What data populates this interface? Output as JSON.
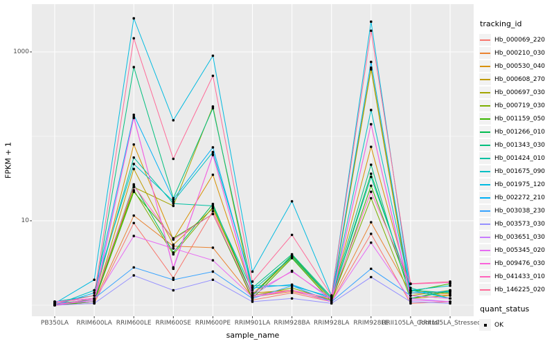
{
  "figure": {
    "background": "#FFFFFF",
    "panel_background": "#EBEBEB",
    "gridline_color": "#FFFFFF",
    "tick_label_color": "#4D4D4D",
    "point_color": "#000000"
  },
  "axes": {
    "x_title": "sample_name",
    "y_title": "FPKM + 1"
  },
  "legend": {
    "tracking_title": "tracking_id",
    "quant_title": "quant_status",
    "quant_item_label": "OK"
  },
  "chart_data": {
    "type": "line",
    "title": "",
    "xlabel": "sample_name",
    "ylabel": "FPKM + 1",
    "legend_position": "right",
    "grid": true,
    "point_marker": "black dot on every value (quant_status = OK)",
    "y_axis": {
      "scale": "log10",
      "tick_values": [
        1000,
        10
      ],
      "tick_labels": [
        "1000",
        "10"
      ],
      "minor_gridline_values": [
        100,
        1
      ],
      "range_approx": [
        0.75,
        3700
      ]
    },
    "categories": [
      "PB350LA",
      "RRIM600LA",
      "RRIM600LE",
      "RRIM600SE",
      "RRIM600PE",
      "RRIM901LA",
      "RRIM928BA",
      "RRIM928LA",
      "RRIM928LE",
      "RRII105LA_Control",
      "RRII105LA_Stressed"
    ],
    "series": [
      {
        "name": "Hb_000069_220",
        "color": "#F8766D",
        "values": [
          1.0,
          1.05,
          9.4,
          2.1,
          13,
          1.15,
          1.4,
          1.1,
          7,
          1.05,
          1.1
        ]
      },
      {
        "name": "Hb_000210_030",
        "color": "#EA8331",
        "values": [
          1.02,
          1.1,
          11.5,
          5,
          4.8,
          1.25,
          1.45,
          1.15,
          9.6,
          1.4,
          1.3
        ]
      },
      {
        "name": "Hb_000530_040",
        "color": "#D89000",
        "values": [
          1.0,
          1.15,
          80,
          6,
          35,
          1.4,
          1.5,
          1.2,
          75,
          1.5,
          1.35
        ]
      },
      {
        "name": "Hb_000608_270",
        "color": "#C09B00",
        "values": [
          1.05,
          1.1,
          41,
          5.2,
          14,
          1.3,
          3.7,
          1.15,
          620,
          1.2,
          1.3
        ]
      },
      {
        "name": "Hb_000697_030",
        "color": "#A3A500",
        "values": [
          1.0,
          1.1,
          25,
          15,
          225,
          1.35,
          3.8,
          1.2,
          650,
          1.3,
          1.5
        ]
      },
      {
        "name": "Hb_000719_030",
        "color": "#7CAE00",
        "values": [
          1.1,
          1.2,
          23,
          4,
          14.5,
          1.3,
          1.6,
          1.15,
          18.5,
          1.2,
          1.45
        ]
      },
      {
        "name": "Hb_001159_050",
        "color": "#39B600",
        "values": [
          1.0,
          1.1,
          22,
          6.2,
          12,
          1.2,
          3.6,
          1.1,
          26,
          1.45,
          1.8
        ]
      },
      {
        "name": "Hb_001266_010",
        "color": "#00BB4E",
        "values": [
          1.05,
          1.15,
          27,
          4.2,
          15.8,
          1.3,
          3.9,
          1.2,
          36,
          1.5,
          1.4
        ]
      },
      {
        "name": "Hb_001343_030",
        "color": "#00BF7D",
        "values": [
          1.0,
          1.2,
          660,
          18.5,
          215,
          1.6,
          4,
          1.25,
          46,
          1.2,
          1.5
        ]
      },
      {
        "name": "Hb_001424_010",
        "color": "#00C1A3",
        "values": [
          1.1,
          1.3,
          56,
          16,
          15,
          1.5,
          3.7,
          1.2,
          33,
          1.6,
          1.2
        ]
      },
      {
        "name": "Hb_001675_090",
        "color": "#00BFC4",
        "values": [
          1.0,
          1.5,
          47,
          17,
          65,
          1.7,
          1.7,
          1.25,
          205,
          1.5,
          1.7
        ]
      },
      {
        "name": "Hb_001975_120",
        "color": "#00BAE0",
        "values": [
          1.05,
          2.0,
          2500,
          155,
          900,
          2.5,
          17,
          1.3,
          2280,
          1.5,
          1.2
        ]
      },
      {
        "name": "Hb_002272_210",
        "color": "#00B0F6",
        "values": [
          1.0,
          1.4,
          180,
          18,
          74,
          1.6,
          1.75,
          1.2,
          760,
          1.4,
          1.45
        ]
      },
      {
        "name": "Hb_003038_230",
        "color": "#35A2FF",
        "values": [
          1.1,
          1.2,
          2.8,
          2,
          2.5,
          1.2,
          1.7,
          1.1,
          2.7,
          1.3,
          1.2
        ]
      },
      {
        "name": "Hb_003573_030",
        "color": "#9590FF",
        "values": [
          1.0,
          1.05,
          2.25,
          1.5,
          2,
          1.1,
          1.2,
          1.05,
          2.15,
          1.1,
          1.05
        ]
      },
      {
        "name": "Hb_003651_030",
        "color": "#C77CFF",
        "values": [
          1.05,
          1.1,
          170,
          2.7,
          61,
          1.3,
          2.55,
          1.15,
          139,
          1.2,
          1.1
        ]
      },
      {
        "name": "Hb_005345_020",
        "color": "#E76BF3",
        "values": [
          1.0,
          1.15,
          6.6,
          4.7,
          3.4,
          1.25,
          1.5,
          1.1,
          5.5,
          1.15,
          1.1
        ]
      },
      {
        "name": "Hb_009476_030",
        "color": "#FA62DB",
        "values": [
          1.1,
          1.2,
          165,
          2.8,
          60,
          1.4,
          2.5,
          1.2,
          139,
          1.3,
          1.2
        ]
      },
      {
        "name": "Hb_041433_010",
        "color": "#FF62BC",
        "values": [
          1.0,
          1.2,
          26,
          6,
          12,
          1.3,
          1.5,
          1.2,
          22,
          1.78,
          1.85
        ]
      },
      {
        "name": "Hb_146225_020",
        "color": "#FF6A98",
        "values": [
          1.05,
          1.3,
          1450,
          54,
          520,
          1.9,
          6.8,
          1.3,
          1780,
          1.8,
          1.9
        ]
      }
    ]
  }
}
